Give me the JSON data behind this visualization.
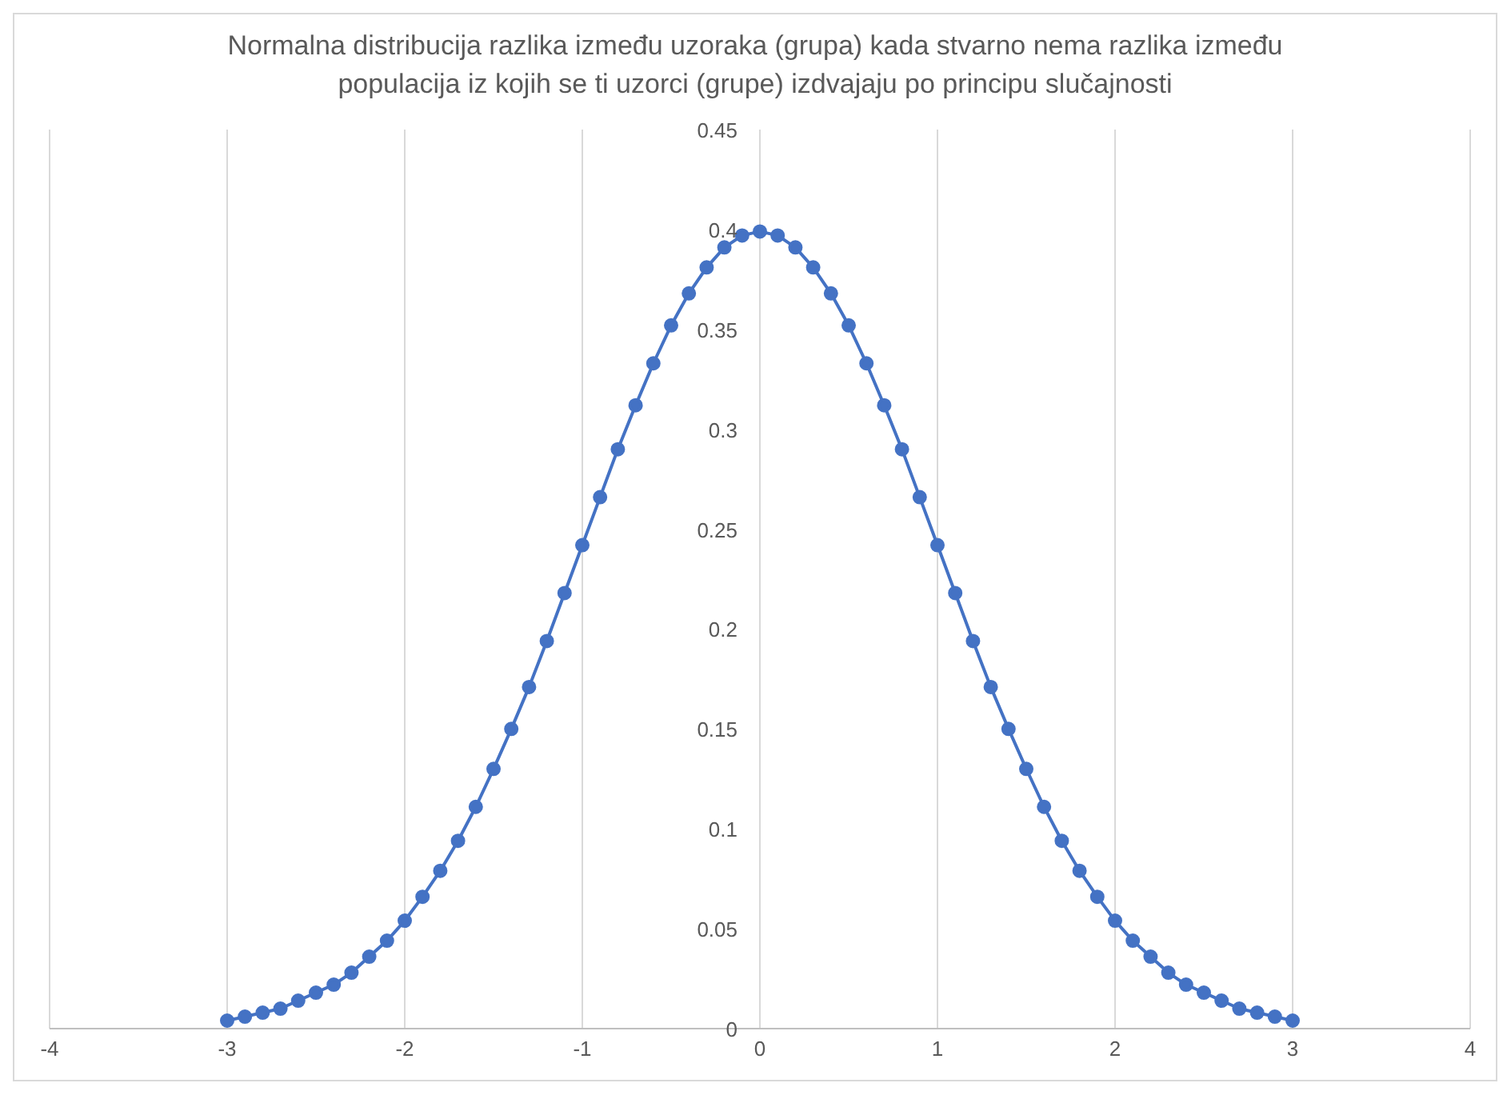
{
  "chart_data": {
    "type": "line",
    "title": "Normalna distribucija razlika između uzoraka (grupa) kada stvarno nema razlika između populacija iz kojih se ti uzorci (grupe) izdvajaju po principu slučajnosti",
    "x": [
      -3,
      -2.9,
      -2.8,
      -2.7,
      -2.6,
      -2.5,
      -2.4,
      -2.3,
      -2.2,
      -2.1,
      -2,
      -1.9,
      -1.8,
      -1.7,
      -1.6,
      -1.5,
      -1.4,
      -1.3,
      -1.2,
      -1.1,
      -1,
      -0.9,
      -0.8,
      -0.7,
      -0.6,
      -0.5,
      -0.4,
      -0.3,
      -0.2,
      -0.1,
      0,
      0.1,
      0.2,
      0.3,
      0.4,
      0.5,
      0.6,
      0.7,
      0.8,
      0.9,
      1,
      1.1,
      1.2,
      1.3,
      1.4,
      1.5,
      1.6,
      1.7,
      1.8,
      1.9,
      2,
      2.1,
      2.2,
      2.3,
      2.4,
      2.5,
      2.6,
      2.7,
      2.8,
      2.9,
      3
    ],
    "series": [
      {
        "color": "#4472c4",
        "values": [
          0.004,
          0.006,
          0.008,
          0.01,
          0.014,
          0.018,
          0.022,
          0.028,
          0.036,
          0.044,
          0.054,
          0.066,
          0.079,
          0.094,
          0.111,
          0.13,
          0.15,
          0.171,
          0.194,
          0.218,
          0.242,
          0.266,
          0.29,
          0.312,
          0.333,
          0.352,
          0.368,
          0.381,
          0.391,
          0.397,
          0.399,
          0.397,
          0.391,
          0.381,
          0.368,
          0.352,
          0.333,
          0.312,
          0.29,
          0.266,
          0.242,
          0.218,
          0.194,
          0.171,
          0.15,
          0.13,
          0.111,
          0.094,
          0.079,
          0.066,
          0.054,
          0.044,
          0.036,
          0.028,
          0.022,
          0.018,
          0.014,
          0.01,
          0.008,
          0.006,
          0.004
        ]
      }
    ],
    "xlim": [
      -4,
      4
    ],
    "xticks": [
      -4,
      -3,
      -2,
      -1,
      0,
      1,
      2,
      3,
      4
    ],
    "ylim": [
      0,
      0.45
    ],
    "yticks": [
      0,
      0.05,
      0.1,
      0.15,
      0.2,
      0.25,
      0.3,
      0.35,
      0.4,
      0.45
    ],
    "grid": "x",
    "marker": "circle",
    "line_style": "solid"
  }
}
